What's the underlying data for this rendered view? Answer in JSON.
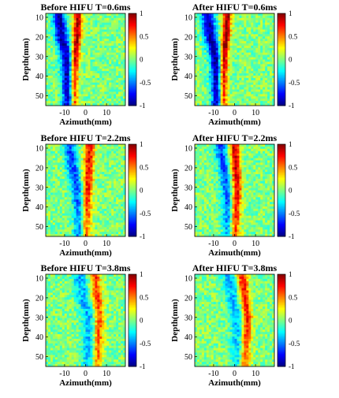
{
  "chart_data": [
    {
      "type": "heatmap",
      "title": "Before HIFU T=0.6ms",
      "xlabel": "Azimuth(mm)",
      "ylabel": "Depth(mm)",
      "xlim": [
        -19,
        19
      ],
      "ylim": [
        8,
        55
      ],
      "x_ticks": [
        -10,
        0,
        10
      ],
      "y_ticks": [
        10,
        20,
        30,
        40,
        50
      ],
      "colorbar": {
        "range": [
          -1,
          1
        ],
        "ticks": [
          "1",
          "0.5",
          "0",
          "-0.5",
          "-1"
        ],
        "colormap": "jet"
      },
      "wavefronts": [
        {
          "polarity": "positive",
          "amplitude": 0.95,
          "width_mm": 2.0,
          "depth_mm": [
            8,
            20,
            30,
            40,
            50,
            55
          ],
          "azimuth_mm": [
            -3.5,
            -4.0,
            -5.0,
            -5.5,
            -5.5,
            -5.5
          ]
        },
        {
          "polarity": "negative",
          "amplitude": 0.95,
          "width_mm": 3.0,
          "depth_mm": [
            8,
            20,
            30,
            40,
            50,
            55
          ],
          "azimuth_mm": [
            -13.0,
            -11.5,
            -9.0,
            -8.5,
            -8.0,
            -8.0
          ]
        }
      ]
    },
    {
      "type": "heatmap",
      "title": "After HIFU T=0.6ms",
      "xlabel": "Azimuth(mm)",
      "ylabel": "Depth(mm)",
      "xlim": [
        -19,
        19
      ],
      "ylim": [
        8,
        55
      ],
      "x_ticks": [
        -10,
        0,
        10
      ],
      "y_ticks": [
        10,
        20,
        30,
        40,
        50
      ],
      "colorbar": {
        "range": [
          -1,
          1
        ],
        "ticks": [
          "1",
          "0.5",
          "0",
          "-0.5",
          "-1"
        ],
        "colormap": "jet"
      },
      "wavefronts": [
        {
          "polarity": "positive",
          "amplitude": 1.0,
          "width_mm": 2.0,
          "depth_mm": [
            8,
            20,
            30,
            40,
            50,
            55
          ],
          "azimuth_mm": [
            -3.5,
            -4.0,
            -5.0,
            -5.5,
            -5.5,
            -5.5
          ]
        },
        {
          "polarity": "negative",
          "amplitude": 0.95,
          "width_mm": 3.0,
          "depth_mm": [
            8,
            20,
            30,
            40,
            50,
            55
          ],
          "azimuth_mm": [
            -13.0,
            -11.5,
            -9.0,
            -8.5,
            -8.0,
            -8.0
          ]
        }
      ]
    },
    {
      "type": "heatmap",
      "title": "Before HIFU T=2.2ms",
      "xlabel": "Azimuth(mm)",
      "ylabel": "Depth(mm)",
      "xlim": [
        -19,
        19
      ],
      "ylim": [
        8,
        55
      ],
      "x_ticks": [
        -10,
        0,
        10
      ],
      "y_ticks": [
        10,
        20,
        30,
        40,
        50
      ],
      "colorbar": {
        "range": [
          -1,
          1
        ],
        "ticks": [
          "1",
          "0.5",
          "0",
          "-0.5",
          "-1"
        ],
        "colormap": "jet"
      },
      "wavefronts": [
        {
          "polarity": "positive",
          "amplitude": 0.75,
          "width_mm": 2.5,
          "depth_mm": [
            8,
            20,
            30,
            40,
            50,
            55
          ],
          "azimuth_mm": [
            2.0,
            1.5,
            1.0,
            0.5,
            0.0,
            0.0
          ]
        },
        {
          "polarity": "negative",
          "amplitude": 0.6,
          "width_mm": 3.0,
          "depth_mm": [
            8,
            20,
            30,
            40,
            50,
            55
          ],
          "azimuth_mm": [
            -8.0,
            -6.0,
            -4.0,
            -3.0,
            -2.5,
            -2.5
          ]
        }
      ]
    },
    {
      "type": "heatmap",
      "title": "After HIFU T=2.2ms",
      "xlabel": "Azimuth(mm)",
      "ylabel": "Depth(mm)",
      "xlim": [
        -19,
        19
      ],
      "ylim": [
        8,
        55
      ],
      "x_ticks": [
        -10,
        0,
        10
      ],
      "y_ticks": [
        10,
        20,
        30,
        40,
        50
      ],
      "colorbar": {
        "range": [
          -1,
          1
        ],
        "ticks": [
          "1",
          "0.5",
          "0",
          "-0.5",
          "-1"
        ],
        "colormap": "jet"
      },
      "wavefronts": [
        {
          "polarity": "positive",
          "amplitude": 0.85,
          "width_mm": 2.5,
          "depth_mm": [
            8,
            20,
            30,
            40,
            50,
            55
          ],
          "azimuth_mm": [
            0.0,
            0.5,
            1.0,
            0.5,
            0.0,
            0.0
          ]
        },
        {
          "polarity": "negative",
          "amplitude": 0.6,
          "width_mm": 3.0,
          "depth_mm": [
            8,
            20,
            30,
            40,
            50,
            55
          ],
          "azimuth_mm": [
            -7.0,
            -5.0,
            -3.5,
            -3.0,
            -2.5,
            -2.5
          ]
        }
      ]
    },
    {
      "type": "heatmap",
      "title": "Before HIFU T=3.8ms",
      "xlabel": "Azimuth(mm)",
      "ylabel": "Depth(mm)",
      "xlim": [
        -19,
        19
      ],
      "ylim": [
        8,
        55
      ],
      "x_ticks": [
        -10,
        0,
        10
      ],
      "y_ticks": [
        10,
        20,
        30,
        40,
        50
      ],
      "colorbar": {
        "range": [
          -1,
          1
        ],
        "ticks": [
          "1",
          "0.5",
          "0",
          "-0.5",
          "-1"
        ],
        "colormap": "jet"
      },
      "wavefronts": [
        {
          "polarity": "positive",
          "amplitude": 0.65,
          "width_mm": 2.5,
          "depth_mm": [
            8,
            20,
            30,
            40,
            50,
            55
          ],
          "azimuth_mm": [
            4.5,
            5.5,
            6.5,
            6.0,
            5.5,
            5.0
          ]
        },
        {
          "polarity": "negative",
          "amplitude": 0.4,
          "width_mm": 3.5,
          "depth_mm": [
            8,
            20,
            30,
            40,
            50,
            55
          ],
          "azimuth_mm": [
            -3.0,
            -1.0,
            1.5,
            2.0,
            2.0,
            2.0
          ]
        }
      ]
    },
    {
      "type": "heatmap",
      "title": "After HIFU T=3.8ms",
      "xlabel": "Azimuth(mm)",
      "ylabel": "Depth(mm)",
      "xlim": [
        -19,
        19
      ],
      "ylim": [
        8,
        55
      ],
      "x_ticks": [
        -10,
        0,
        10
      ],
      "y_ticks": [
        10,
        20,
        30,
        40,
        50
      ],
      "colorbar": {
        "range": [
          -1,
          1
        ],
        "ticks": [
          "1",
          "0.5",
          "0",
          "-0.5",
          "-1"
        ],
        "colormap": "jet"
      },
      "wavefronts": [
        {
          "polarity": "positive",
          "amplitude": 0.75,
          "width_mm": 2.5,
          "depth_mm": [
            8,
            20,
            30,
            40,
            50,
            55
          ],
          "azimuth_mm": [
            3.5,
            5.0,
            6.0,
            5.5,
            5.0,
            4.5
          ]
        },
        {
          "polarity": "negative",
          "amplitude": 0.4,
          "width_mm": 3.5,
          "depth_mm": [
            8,
            20,
            30,
            40,
            50,
            55
          ],
          "azimuth_mm": [
            -3.0,
            -1.0,
            1.5,
            2.0,
            2.0,
            2.0
          ]
        }
      ]
    }
  ]
}
